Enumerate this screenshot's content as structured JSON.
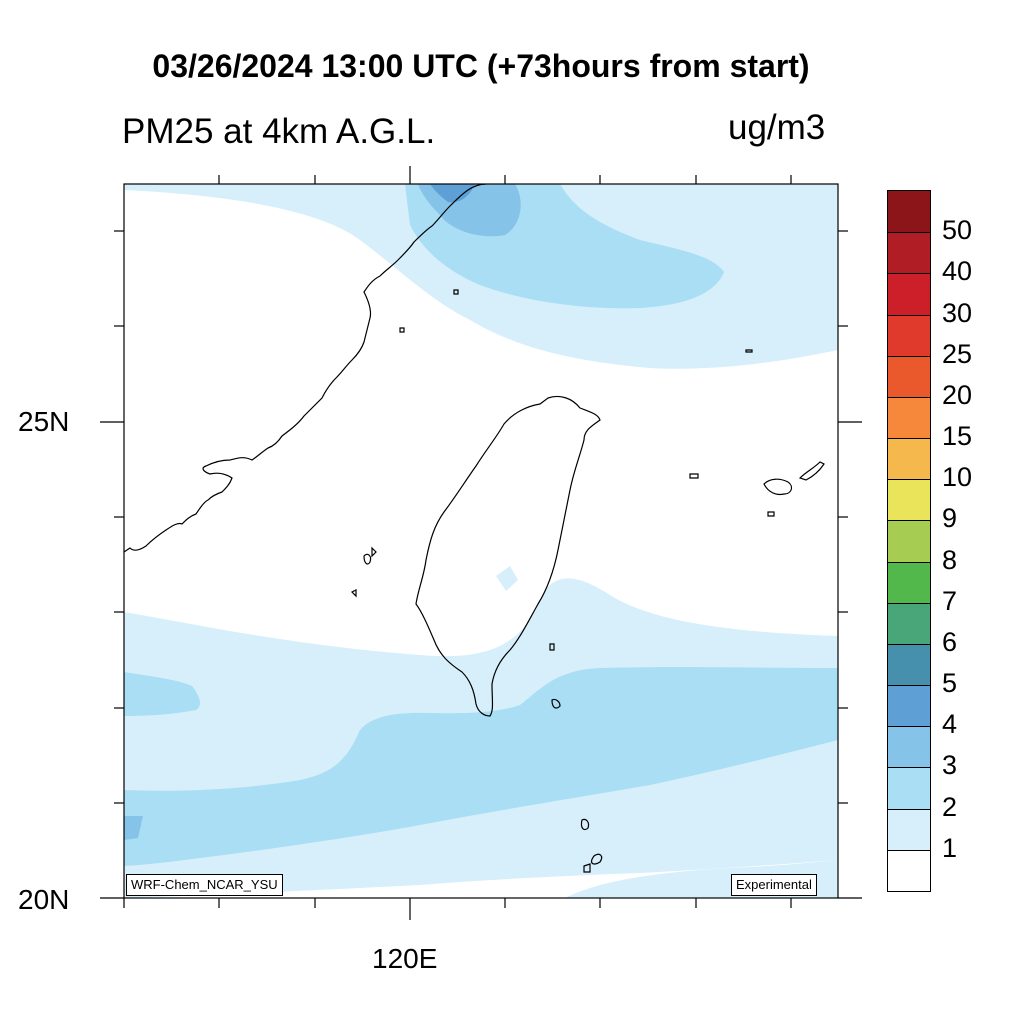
{
  "title": "03/26/2024 13:00 UTC (+73hours from start)",
  "variable_label": "PM25 at 4km A.G.L.",
  "unit_label": "ug/m3",
  "axes": {
    "lat_labels": [
      "25N",
      "20N"
    ],
    "lon_labels": [
      "120E"
    ]
  },
  "model_label": "WRF-Chem_NCAR_YSU",
  "status_label": "Experimental",
  "colorbar": {
    "levels": [
      "1",
      "2",
      "3",
      "4",
      "5",
      "6",
      "7",
      "8",
      "9",
      "10",
      "15",
      "20",
      "25",
      "30",
      "40",
      "50"
    ],
    "colors": [
      "#ffffff",
      "#d6effb",
      "#a9def4",
      "#85c3e8",
      "#5e9fd6",
      "#4690ae",
      "#48a679",
      "#53b84c",
      "#a6cd52",
      "#e9e45a",
      "#f5b84c",
      "#f5883a",
      "#e9592c",
      "#df3a2b",
      "#cd1f2a",
      "#b11d25",
      "#8c1519"
    ]
  },
  "map_layers": [
    "pm25-contours",
    "coastline-china",
    "coastline-taiwan",
    "coastline-islands"
  ]
}
